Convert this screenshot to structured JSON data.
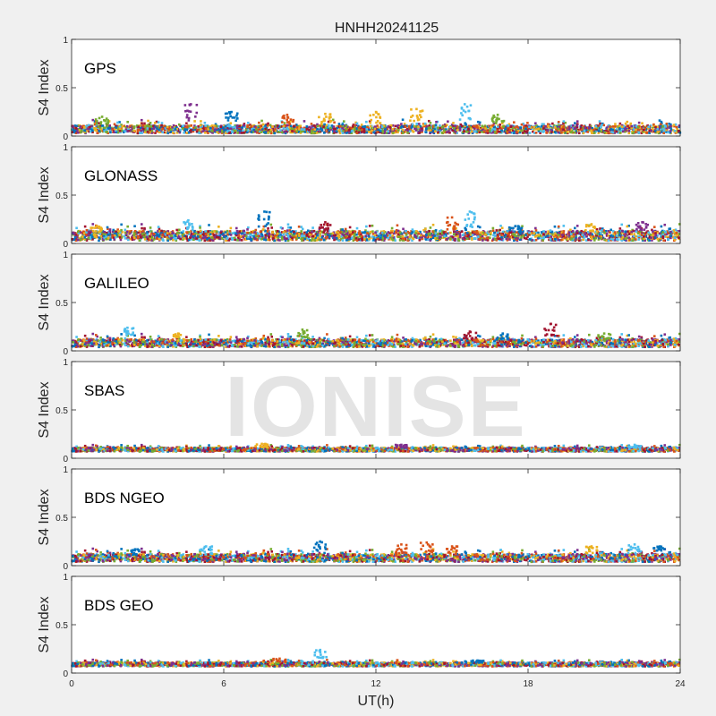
{
  "chart_data": {
    "type": "scatter",
    "title": "HNHH20241125",
    "xlabel": "UT(h)",
    "xlim": [
      0,
      24
    ],
    "xticks": [
      0,
      6,
      12,
      18,
      24
    ],
    "watermark": "IONISE",
    "series_colors": [
      "#0072BD",
      "#D95319",
      "#EDB120",
      "#7E2F8E",
      "#77AC30",
      "#4DBEEE",
      "#A2142F"
    ],
    "panels": [
      {
        "label": "GPS",
        "ylabel": "S4 Index",
        "ylim": [
          0,
          1
        ],
        "yticks": [
          0,
          0.5,
          1
        ],
        "baseline": 0.07,
        "spread": 0.04,
        "bumps": [
          [
            1.2,
            0.2
          ],
          [
            4.7,
            0.33
          ],
          [
            6.3,
            0.25
          ],
          [
            8.5,
            0.22
          ],
          [
            10.0,
            0.23
          ],
          [
            12.0,
            0.25
          ],
          [
            13.6,
            0.28
          ],
          [
            15.5,
            0.33
          ],
          [
            16.8,
            0.22
          ]
        ],
        "dense": [
          [
            0,
            24,
            0.07
          ]
        ]
      },
      {
        "label": "GLONASS",
        "ylabel": "S4 Index",
        "ylim": [
          0,
          1
        ],
        "yticks": [
          0,
          0.5,
          1
        ],
        "baseline": 0.08,
        "spread": 0.05,
        "bumps": [
          [
            1.0,
            0.18
          ],
          [
            4.6,
            0.24
          ],
          [
            7.6,
            0.33
          ],
          [
            10.0,
            0.22
          ],
          [
            15.0,
            0.27
          ],
          [
            15.7,
            0.33
          ],
          [
            17.5,
            0.18
          ],
          [
            20.5,
            0.2
          ],
          [
            22.5,
            0.22
          ]
        ],
        "dense": [
          [
            0,
            24,
            0.08
          ]
        ]
      },
      {
        "label": "GALILEO",
        "ylabel": "S4 Index",
        "ylim": [
          0,
          1
        ],
        "yticks": [
          0,
          0.5,
          1
        ],
        "baseline": 0.08,
        "spread": 0.04,
        "bumps": [
          [
            2.2,
            0.24
          ],
          [
            4.2,
            0.18
          ],
          [
            9.1,
            0.22
          ],
          [
            15.7,
            0.2
          ],
          [
            17.0,
            0.18
          ],
          [
            18.9,
            0.28
          ],
          [
            21.0,
            0.18
          ]
        ],
        "dense": [
          [
            0,
            24,
            0.08
          ]
        ]
      },
      {
        "label": "SBAS",
        "ylabel": "S4 Index",
        "ylim": [
          0,
          1
        ],
        "yticks": [
          0,
          0.5,
          1
        ],
        "baseline": 0.09,
        "spread": 0.02,
        "bumps": [
          [
            7.5,
            0.15
          ],
          [
            13.0,
            0.14
          ],
          [
            22.2,
            0.14
          ]
        ],
        "dense": [
          [
            0,
            24,
            0.09
          ]
        ]
      },
      {
        "label": "BDS NGEO",
        "ylabel": "S4 Index",
        "ylim": [
          0,
          1
        ],
        "yticks": [
          0,
          0.5,
          1
        ],
        "baseline": 0.08,
        "spread": 0.04,
        "bumps": [
          [
            2.5,
            0.17
          ],
          [
            5.3,
            0.2
          ],
          [
            9.8,
            0.25
          ],
          [
            13.0,
            0.22
          ],
          [
            14.0,
            0.24
          ],
          [
            15.0,
            0.2
          ],
          [
            20.5,
            0.2
          ],
          [
            22.2,
            0.22
          ],
          [
            23.2,
            0.2
          ]
        ],
        "dense": [
          [
            0,
            24,
            0.08
          ]
        ]
      },
      {
        "label": "BDS GEO",
        "ylabel": "S4 Index",
        "ylim": [
          0,
          1
        ],
        "yticks": [
          0,
          0.5,
          1
        ],
        "baseline": 0.09,
        "spread": 0.02,
        "bumps": [
          [
            8.2,
            0.15
          ],
          [
            9.8,
            0.24
          ],
          [
            16.0,
            0.13
          ]
        ],
        "dense": [
          [
            0,
            24,
            0.09
          ]
        ]
      }
    ]
  }
}
